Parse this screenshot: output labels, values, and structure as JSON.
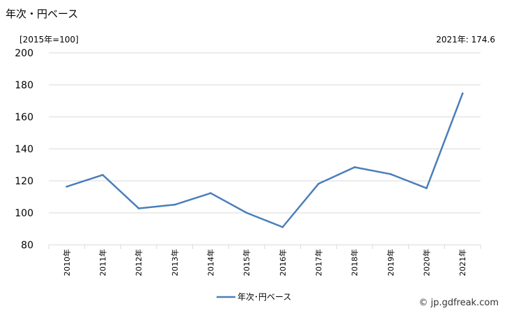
{
  "header": {
    "title": "年次・円ベース",
    "unit": "[2015年=100]",
    "note": "2021年: 174.6",
    "credit": "© jp.gdfreak.com"
  },
  "chart_data": {
    "type": "line",
    "x": [
      "2010年",
      "2011年",
      "2012年",
      "2013年",
      "2014年",
      "2015年",
      "2016年",
      "2017年",
      "2018年",
      "2019年",
      "2020年",
      "2021年"
    ],
    "series": [
      {
        "name": "年次･円ベース",
        "color": "#4a7ebb",
        "values": [
          116.4,
          123.7,
          102.8,
          105.1,
          112.3,
          100.0,
          91.1,
          118.2,
          128.5,
          124.2,
          115.4,
          174.6
        ]
      }
    ],
    "yticks": [
      80,
      100,
      120,
      140,
      160,
      180,
      200
    ],
    "ylim": [
      80,
      200
    ],
    "grid": true,
    "legend": "bottom-center"
  }
}
